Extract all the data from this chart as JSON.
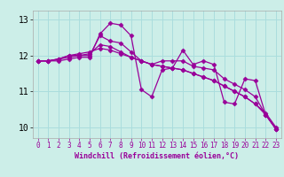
{
  "xlabel": "Windchill (Refroidissement éolien,°C)",
  "ylabel": "",
  "background_color": "#cceee8",
  "grid_color": "#aadddd",
  "line_color": "#990099",
  "xlim": [
    -0.5,
    23.5
  ],
  "ylim": [
    9.7,
    13.25
  ],
  "x_ticks": [
    0,
    1,
    2,
    3,
    4,
    5,
    6,
    7,
    8,
    9,
    10,
    11,
    12,
    13,
    14,
    15,
    16,
    17,
    18,
    19,
    20,
    21,
    22,
    23
  ],
  "y_ticks": [
    10,
    11,
    12,
    13
  ],
  "series": [
    [
      11.85,
      11.85,
      11.85,
      11.9,
      11.95,
      11.95,
      12.6,
      12.9,
      12.85,
      12.55,
      11.05,
      10.85,
      11.6,
      11.65,
      12.15,
      11.75,
      11.85,
      11.75,
      10.7,
      10.65,
      11.35,
      11.3,
      10.35,
      9.95
    ],
    [
      11.85,
      11.85,
      11.9,
      11.95,
      12.0,
      12.0,
      12.55,
      12.4,
      12.35,
      12.1,
      11.85,
      11.75,
      11.85,
      11.85,
      11.85,
      11.7,
      11.65,
      11.6,
      11.35,
      11.2,
      11.05,
      10.85,
      10.35,
      9.95
    ],
    [
      11.85,
      11.85,
      11.9,
      12.0,
      12.0,
      12.05,
      12.3,
      12.25,
      12.1,
      11.95,
      11.85,
      11.75,
      11.7,
      11.65,
      11.6,
      11.5,
      11.4,
      11.3,
      11.15,
      11.0,
      10.85,
      10.65,
      10.4,
      10.0
    ],
    [
      11.85,
      11.85,
      11.9,
      12.0,
      12.05,
      12.1,
      12.2,
      12.15,
      12.05,
      11.95,
      11.85,
      11.75,
      11.7,
      11.65,
      11.6,
      11.5,
      11.4,
      11.3,
      11.15,
      11.0,
      10.85,
      10.65,
      10.35,
      9.95
    ]
  ],
  "marker": "D",
  "markersize": 2.5,
  "linewidth": 0.9,
  "tick_fontsize": 5.5,
  "xlabel_fontsize": 6.0
}
